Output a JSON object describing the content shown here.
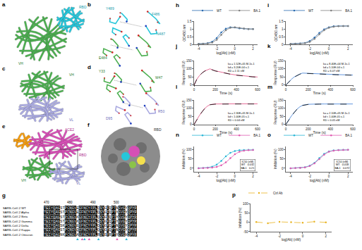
{
  "panel_labels": [
    "a",
    "b",
    "c",
    "d",
    "e",
    "f",
    "g",
    "h",
    "i",
    "j",
    "k",
    "l",
    "m",
    "n",
    "o",
    "p"
  ],
  "structures": [
    {
      "labels": [
        "RBD",
        "VH"
      ]
    },
    {
      "labels": [
        "Y489",
        "F486",
        "N487",
        "E484"
      ]
    },
    {
      "labels": [
        "VH",
        "VL"
      ]
    },
    {
      "labels": [
        "Y33",
        "W47",
        "R50",
        "D95"
      ]
    },
    {
      "labels": [
        "ACE2",
        "RBD",
        "VH",
        "VL"
      ]
    },
    {
      "labels": [
        "RBD"
      ]
    }
  ],
  "alignment": {
    "names": [
      "SARS-CoV-2 WT",
      "SARS-CoV-2 Alpha",
      "SARS-CoV-2 Beta",
      "SARS-CoV-2 Gamma",
      "SARS-CoV-2 Delta",
      "SARS-CoV-2 Kappa",
      "SARS-CoV-2 Omicron"
    ],
    "sequences": [
      "TEIYQAGSTPCNGVEGFNCYFPLQSYGFQPTNGVGYQPYR",
      "TEIYQAGSTPCNGVEGFNCYFPLQSYGFQPTYGVGYQPYR",
      "TEIYQAGSTPCNGVKGFNCYFPLQSYGFQPTYGVGYQPYR",
      "TEIYQAGSTPCNGVKGFNCYFPLQSYGFQPTYGVGYQPYR",
      "TEIYQAGSKPCNGVEGFNCYFPLQSYGFQPTNGVGYQPYR",
      "TEIYQAGSTPCNGVQGFNCYFPLQSYGFQPTNGVGYQPYR",
      "TEIYQAGNKPCNGVAGFNCYFPLRSYSFRPTYGVGHQPYR"
    ],
    "start": 470,
    "ruler": [
      470,
      480,
      490,
      500
    ],
    "contact_positions": [
      484,
      486,
      487,
      489,
      493,
      501,
      505
    ]
  },
  "chart_data": [
    {
      "type": "line",
      "xlabel": "log[Ab] (nM)",
      "ylabel": "OD450 nm",
      "x": [
        -4,
        -3.5,
        -3,
        -2.5,
        -2,
        -1.5,
        -1,
        -0.5,
        0,
        0.5,
        1,
        1.5,
        2
      ],
      "series": [
        {
          "name": "WT",
          "color": "#2b6cb0",
          "marker": "circle",
          "line_style": "solid",
          "values": [
            0.04,
            0.05,
            0.08,
            0.18,
            0.42,
            0.78,
            1.02,
            1.12,
            1.1,
            1.05,
            1.02,
            1.0,
            1.0
          ]
        },
        {
          "name": "BA.1",
          "color": "#7f7f7f",
          "marker": "circle",
          "line_style": "solid",
          "values": [
            0.04,
            0.04,
            0.06,
            0.12,
            0.3,
            0.62,
            0.92,
            1.08,
            1.12,
            1.08,
            1.04,
            1.0,
            1.0
          ]
        }
      ],
      "xlim": [
        -4.5,
        2.5
      ],
      "xticks": [
        -4,
        -2,
        0,
        2
      ],
      "ylim": [
        0,
        1.5
      ],
      "yticks": [
        0,
        0.5,
        1,
        1.5
      ],
      "grid": false,
      "legend": "top"
    },
    {
      "type": "line",
      "xlabel": "log[Ab] (nM)",
      "ylabel": "OD450 nm",
      "x": [
        -4,
        -3.5,
        -3,
        -2.5,
        -2,
        -1.5,
        -1,
        -0.5,
        0,
        0.5,
        1,
        1.5,
        2
      ],
      "series": [
        {
          "name": "WT",
          "color": "#2b6cb0",
          "marker": "circle",
          "line_style": "solid",
          "values": [
            0.04,
            0.05,
            0.06,
            0.1,
            0.22,
            0.45,
            0.75,
            0.98,
            1.12,
            1.18,
            1.2,
            1.2,
            1.2
          ]
        },
        {
          "name": "BA.1",
          "color": "#7f7f7f",
          "marker": "circle",
          "line_style": "solid",
          "values": [
            0.04,
            0.04,
            0.05,
            0.08,
            0.16,
            0.36,
            0.66,
            0.92,
            1.08,
            1.15,
            1.18,
            1.2,
            1.2
          ]
        }
      ],
      "xlim": [
        -4.5,
        2.5
      ],
      "xticks": [
        -4,
        -2,
        0,
        2
      ],
      "ylim": [
        0,
        1.5
      ],
      "yticks": [
        0,
        0.5,
        1,
        1.5
      ],
      "grid": false,
      "legend": "top"
    },
    {
      "type": "line",
      "xlabel": "Time (s)",
      "ylabel": "Response (RU)",
      "x": [
        0,
        25,
        50,
        75,
        100,
        125,
        150,
        200,
        250,
        300,
        350,
        400,
        450,
        500,
        550,
        600
      ],
      "series": [
        {
          "color": "#e0457b",
          "line_style": "solid",
          "values": [
            0,
            35,
            58,
            75,
            87,
            95,
            100,
            88,
            80,
            73,
            67,
            62,
            58,
            55,
            52,
            50
          ]
        },
        {
          "color": "#000000",
          "line_style": "dashed",
          "values": [
            0,
            34,
            57,
            74,
            86,
            94,
            99,
            87,
            79,
            72,
            66,
            61,
            57,
            54,
            51,
            49
          ]
        }
      ],
      "annotations": [
        "ka = 1.52E+05 M-1s-1",
        "kd = 3.20E-04 s-1",
        "KD = 2.11 nM"
      ],
      "xlim": [
        0,
        600
      ],
      "xticks": [
        0,
        200,
        400,
        600
      ],
      "ylim": [
        0,
        150
      ],
      "yticks": [
        0,
        50,
        100,
        150
      ],
      "grid": false
    },
    {
      "type": "line",
      "xlabel": "Time (s)",
      "ylabel": "Response (RU)",
      "x": [
        0,
        25,
        50,
        75,
        100,
        125,
        150,
        200,
        250,
        300,
        350,
        400,
        450,
        500,
        550,
        600
      ],
      "series": [
        {
          "color": "#3a7bd5",
          "line_style": "solid",
          "values": [
            0,
            20,
            36,
            50,
            60,
            68,
            74,
            72,
            70,
            68,
            67,
            66,
            65,
            64,
            63,
            62
          ]
        },
        {
          "color": "#000000",
          "line_style": "dashed",
          "values": [
            0,
            19,
            35,
            49,
            59,
            67,
            73,
            71,
            69,
            67,
            66,
            65,
            64,
            63,
            62,
            61
          ]
        }
      ],
      "annotations": [
        "ka = 8.40E+04 M-1s-1",
        "kd = 5.10E-04 s-1",
        "KD = 6.07 nM"
      ],
      "xlim": [
        0,
        600
      ],
      "xticks": [
        0,
        200,
        400,
        600
      ],
      "ylim": [
        0,
        150
      ],
      "yticks": [
        0,
        50,
        100,
        150
      ],
      "grid": false
    },
    {
      "type": "line",
      "xlabel": "Time (s)",
      "ylabel": "Response (RU)",
      "x": [
        0,
        25,
        50,
        75,
        100,
        125,
        150,
        200,
        250,
        300,
        350,
        400,
        450,
        500,
        550,
        600
      ],
      "series": [
        {
          "color": "#e0457b",
          "line_style": "solid",
          "values": [
            0,
            30,
            55,
            78,
            98,
            112,
            122,
            126,
            127,
            127,
            127,
            127,
            127,
            127,
            127,
            127
          ]
        },
        {
          "color": "#000000",
          "line_style": "dashed",
          "values": [
            0,
            29,
            54,
            77,
            97,
            111,
            121,
            125,
            126,
            126,
            126,
            126,
            126,
            126,
            126,
            126
          ]
        }
      ],
      "annotations": [
        "ka = 2.30E+05 M-1s-1",
        "kd < 1.00E-05 s-1",
        "KD < 0.04 nM"
      ],
      "xlim": [
        0,
        600
      ],
      "xticks": [
        0,
        200,
        400,
        600
      ],
      "ylim": [
        0,
        150
      ],
      "yticks": [
        0,
        50,
        100,
        150
      ],
      "grid": false
    },
    {
      "type": "line",
      "xlabel": "Time (s)",
      "ylabel": "Response (RU)",
      "x": [
        0,
        25,
        50,
        75,
        100,
        125,
        150,
        200,
        250,
        300,
        350,
        400,
        450,
        500,
        550,
        600
      ],
      "series": [
        {
          "color": "#3a7bd5",
          "line_style": "solid",
          "values": [
            0,
            28,
            52,
            74,
            94,
            108,
            118,
            124,
            126,
            126,
            126,
            126,
            126,
            126,
            126,
            126
          ]
        },
        {
          "color": "#000000",
          "line_style": "dashed",
          "values": [
            0,
            27,
            51,
            73,
            93,
            107,
            117,
            123,
            125,
            125,
            125,
            125,
            125,
            125,
            125,
            125
          ]
        }
      ],
      "annotations": [
        "ka = 2.10E+05 M-1s-1",
        "kd < 1.00E-05 s-1",
        "KD < 0.05 nM"
      ],
      "xlim": [
        0,
        600
      ],
      "xticks": [
        0,
        200,
        400,
        600
      ],
      "ylim": [
        0,
        150
      ],
      "yticks": [
        0,
        50,
        100,
        150
      ],
      "grid": false
    },
    {
      "type": "line",
      "xlabel": "log[Ab] (nM)",
      "ylabel": "Inhibition (%)",
      "x": [
        -4,
        -3.5,
        -3,
        -2.5,
        -2,
        -1.5,
        -1,
        -0.5,
        0,
        0.5,
        1,
        1.5,
        2
      ],
      "series": [
        {
          "name": "WT",
          "color": "#29b6d6",
          "marker": "circle",
          "line_style": "solid",
          "values": [
            1,
            2,
            4,
            9,
            20,
            40,
            65,
            84,
            94,
            98,
            99,
            100,
            100
          ]
        },
        {
          "name": "BA.1",
          "color": "#e05ab0",
          "marker": "circle",
          "line_style": "solid",
          "values": [
            0,
            1,
            2,
            4,
            8,
            16,
            32,
            55,
            76,
            90,
            96,
            98,
            99
          ]
        }
      ],
      "table": {
        "header": "IC50 (nM)",
        "rows": [
          [
            "WT",
            "0.032"
          ],
          [
            "BA.1",
            "0.21"
          ]
        ]
      },
      "xlim": [
        -4.5,
        2.5
      ],
      "xticks": [
        -4,
        -2,
        0,
        2
      ],
      "ylim": [
        -20,
        120
      ],
      "yticks": [
        0,
        50,
        100
      ],
      "grid": false,
      "legend": "top"
    },
    {
      "type": "line",
      "xlabel": "log[Ab] (nM)",
      "ylabel": "Inhibition (%)",
      "x": [
        -4,
        -3.5,
        -3,
        -2.5,
        -2,
        -1.5,
        -1,
        -0.5,
        0,
        0.5,
        1,
        1.5,
        2
      ],
      "series": [
        {
          "name": "WT",
          "color": "#29b6d6",
          "marker": "circle",
          "line_style": "solid",
          "values": [
            0,
            2,
            3,
            6,
            14,
            30,
            55,
            78,
            92,
            97,
            99,
            100,
            100
          ]
        },
        {
          "name": "BA.1",
          "color": "#e05ab0",
          "marker": "circle",
          "line_style": "solid",
          "values": [
            0,
            1,
            2,
            5,
            12,
            27,
            50,
            74,
            90,
            96,
            98,
            99,
            100
          ]
        }
      ],
      "table": {
        "header": "IC50 (nM)",
        "rows": [
          [
            "WT",
            "0.058"
          ],
          [
            "BA.1",
            "0.072"
          ]
        ]
      },
      "xlim": [
        -4.5,
        2.5
      ],
      "xticks": [
        -4,
        -2,
        0,
        2
      ],
      "ylim": [
        -20,
        120
      ],
      "yticks": [
        0,
        50,
        100
      ],
      "grid": false,
      "legend": "top"
    },
    {
      "type": "line",
      "xlabel": "log[Ab] (nM)",
      "ylabel": "Inhibition (%)",
      "x": [
        -4,
        -3,
        -2,
        -1,
        0,
        1,
        2
      ],
      "series": [
        {
          "name": "Ctrl Ab",
          "color": "#e8b321",
          "marker": "circle",
          "line_style": "dashed",
          "values": [
            2,
            -4,
            3,
            1,
            -2,
            4,
            0
          ]
        }
      ],
      "xlim": [
        -4.5,
        2.5
      ],
      "xticks": [
        -4,
        -2,
        0,
        2
      ],
      "ylim": [
        -50,
        100
      ],
      "yticks": [
        -50,
        0,
        50,
        100
      ],
      "grid": false,
      "legend": "top"
    }
  ]
}
